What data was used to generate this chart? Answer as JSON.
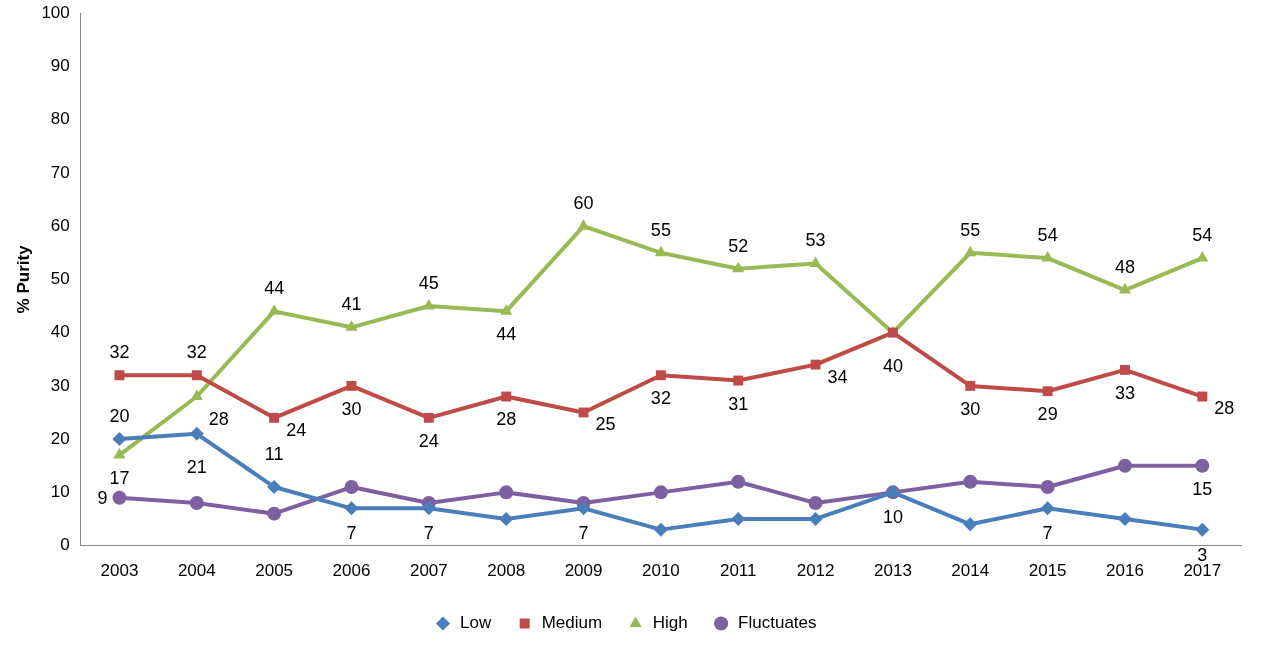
{
  "chart_data": {
    "type": "line",
    "ylabel": "% Purity",
    "categories": [
      "2003",
      "2004",
      "2005",
      "2006",
      "2007",
      "2008",
      "2009",
      "2010",
      "2011",
      "2012",
      "2013",
      "2014",
      "2015",
      "2016",
      "2017"
    ],
    "ylim": [
      0,
      100
    ],
    "yticks": [
      0,
      10,
      20,
      30,
      40,
      50,
      60,
      70,
      80,
      90,
      100
    ],
    "grid": false,
    "legend": "bottom",
    "line_style": "solid",
    "series": [
      {
        "name": "Low",
        "color": "#4a7ebb",
        "marker": "diamond",
        "values": [
          20,
          21,
          11,
          7,
          7,
          5,
          7,
          3,
          5,
          5,
          10,
          4,
          7,
          5,
          3
        ],
        "value_labels": [
          "20",
          "21",
          "11",
          "7",
          "7",
          null,
          "7",
          null,
          null,
          null,
          "10",
          null,
          "7",
          null,
          "3"
        ]
      },
      {
        "name": "Medium",
        "color": "#be4b48",
        "marker": "square",
        "values": [
          32,
          32,
          24,
          30,
          24,
          28,
          25,
          32,
          31,
          34,
          40,
          30,
          29,
          33,
          28
        ],
        "value_labels": [
          "32",
          "32",
          "24",
          "30",
          "24",
          "28",
          "25",
          "32",
          "31",
          "34",
          "40",
          "30",
          "29",
          "33",
          "28"
        ]
      },
      {
        "name": "High",
        "color": "#98b954",
        "marker": "triangle",
        "values": [
          17,
          28,
          44,
          41,
          45,
          44,
          60,
          55,
          52,
          53,
          40,
          55,
          54,
          48,
          54
        ],
        "value_labels": [
          "17",
          "28",
          "44",
          "41",
          "45",
          "44",
          "60",
          "55",
          "52",
          "53",
          null,
          "55",
          "54",
          "48",
          "54"
        ]
      },
      {
        "name": "Fluctuates",
        "color": "#7d60a0",
        "marker": "circle",
        "values": [
          9,
          8,
          6,
          11,
          8,
          10,
          8,
          10,
          12,
          8,
          10,
          12,
          11,
          15,
          15
        ],
        "value_labels": [
          "9",
          null,
          null,
          null,
          null,
          null,
          null,
          null,
          null,
          null,
          null,
          null,
          null,
          null,
          "15"
        ]
      }
    ]
  }
}
